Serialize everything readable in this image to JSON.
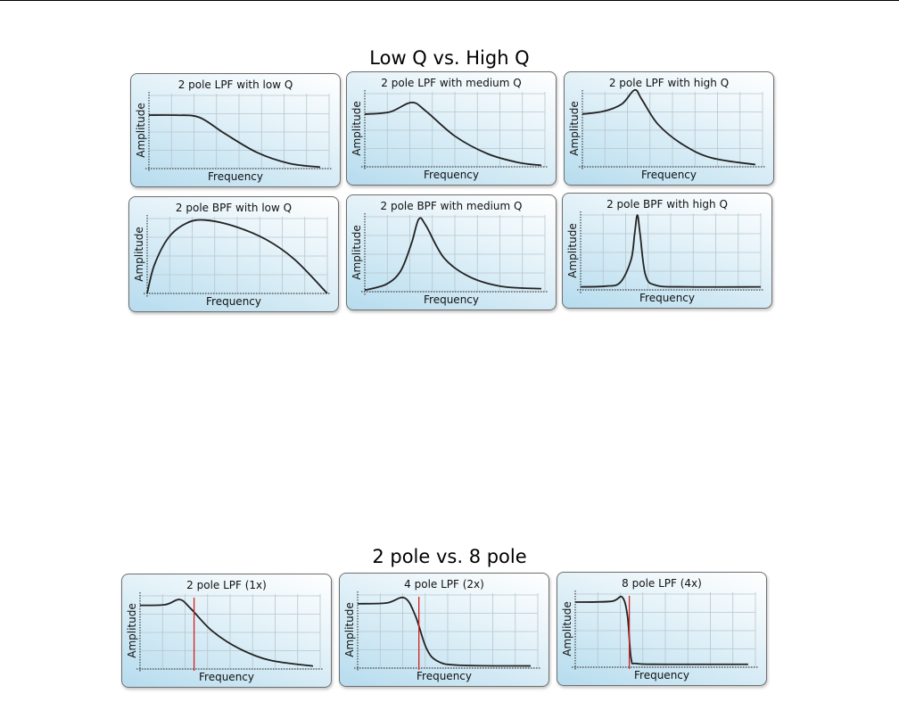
{
  "sections": [
    {
      "title": "Low Q vs. High Q",
      "panels": [
        {
          "title": "2 pole LPF with low Q",
          "xlabel": "Frequency",
          "ylabel": "Amplitude",
          "curve_path": "lpf-flat",
          "cutoff_marker": false
        },
        {
          "title": "2 pole LPF with medium Q",
          "xlabel": "Frequency",
          "ylabel": "Amplitude",
          "curve_path": "lpf-bump",
          "cutoff_marker": false
        },
        {
          "title": "2 pole LPF with high Q",
          "xlabel": "Frequency",
          "ylabel": "Amplitude",
          "curve_path": "lpf-peak",
          "cutoff_marker": false
        },
        {
          "title": "2 pole BPF with low Q",
          "xlabel": "Frequency",
          "ylabel": "Amplitude",
          "curve_path": "bpf-wide",
          "cutoff_marker": false
        },
        {
          "title": "2 pole BPF with medium Q",
          "xlabel": "Frequency",
          "ylabel": "Amplitude",
          "curve_path": "bpf-medium",
          "cutoff_marker": false
        },
        {
          "title": "2 pole BPF with high Q",
          "xlabel": "Frequency",
          "ylabel": "Amplitude",
          "curve_path": "bpf-narrow",
          "cutoff_marker": false
        }
      ]
    },
    {
      "title": "2 pole vs. 8 pole",
      "panels": [
        {
          "title": "2 pole LPF (1x)",
          "xlabel": "Frequency",
          "ylabel": "Amplitude",
          "curve_path": "order-2",
          "cutoff_marker": true
        },
        {
          "title": "4 pole LPF (2x)",
          "xlabel": "Frequency",
          "ylabel": "Amplitude",
          "curve_path": "order-4",
          "cutoff_marker": true
        },
        {
          "title": "8 pole LPF (4x)",
          "xlabel": "Frequency",
          "ylabel": "Amplitude",
          "curve_path": "order-8",
          "cutoff_marker": true
        }
      ]
    }
  ],
  "colors": {
    "curve": "#222222",
    "cutoff_line": "#d42020",
    "grid": "#b7c6cf",
    "axis": "#222222"
  }
}
